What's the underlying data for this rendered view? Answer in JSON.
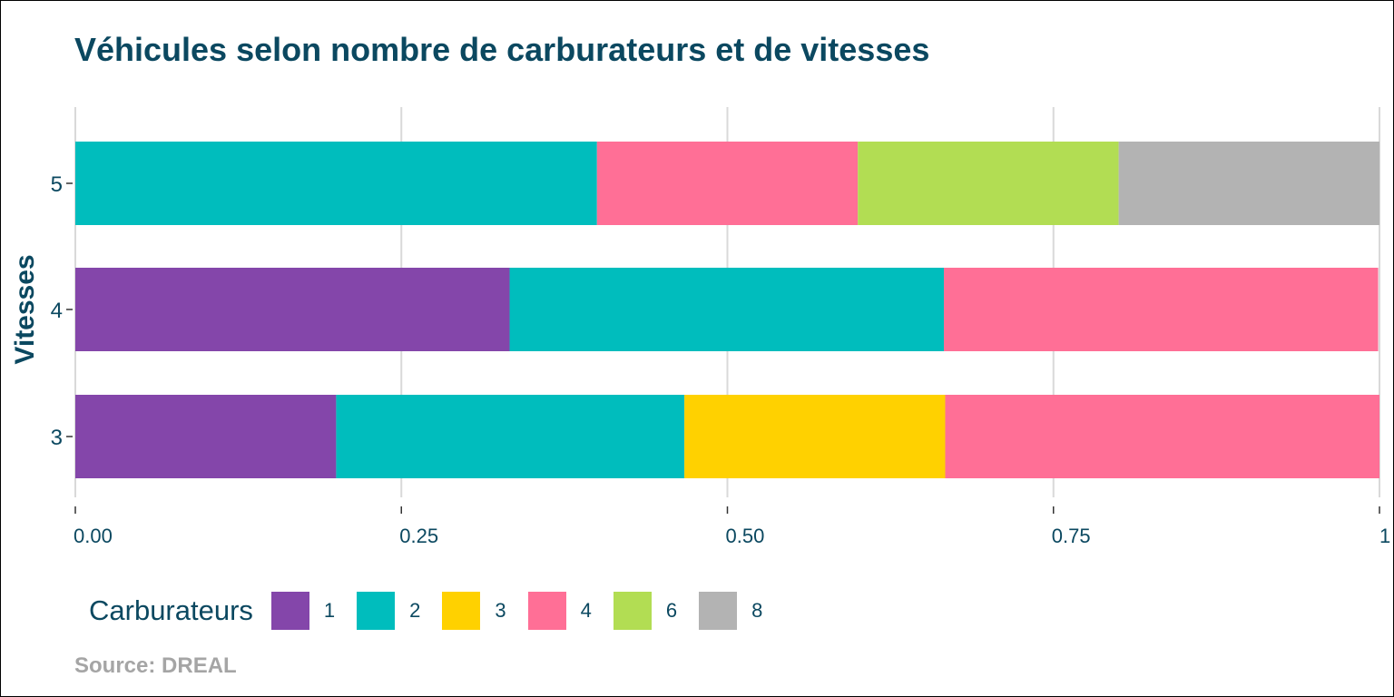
{
  "chart_data": {
    "type": "bar",
    "orientation": "horizontal",
    "stacked": true,
    "normalized": true,
    "title": "Véhicules selon nombre de carburateurs et de vitesses",
    "xlabel": "",
    "ylabel": "Vitesses",
    "xlim": [
      0,
      1
    ],
    "x_ticks": [
      0,
      0.25,
      0.5,
      0.75,
      1
    ],
    "x_tick_labels": [
      "0.00",
      "0.25",
      "0.50",
      "0.75",
      "1"
    ],
    "categories": [
      "3",
      "4",
      "5"
    ],
    "grid": true,
    "legend": {
      "title": "Carburateurs",
      "position": "bottom",
      "entries": [
        "1",
        "2",
        "3",
        "4",
        "6",
        "8"
      ]
    },
    "series": [
      {
        "name": "1",
        "color": "#8446aa",
        "values": [
          0.2,
          0.333,
          0
        ]
      },
      {
        "name": "2",
        "color": "#00bdbd",
        "values": [
          0.267,
          0.333,
          0.4
        ]
      },
      {
        "name": "3",
        "color": "#ffd100",
        "values": [
          0.2,
          0,
          0
        ]
      },
      {
        "name": "4",
        "color": "#ff6f96",
        "values": [
          0.333,
          0.333,
          0.2
        ]
      },
      {
        "name": "6",
        "color": "#b2dd53",
        "values": [
          0,
          0,
          0.2
        ]
      },
      {
        "name": "8",
        "color": "#b3b3b3",
        "values": [
          0,
          0,
          0.2
        ]
      }
    ],
    "source": "Source: DREAL"
  }
}
